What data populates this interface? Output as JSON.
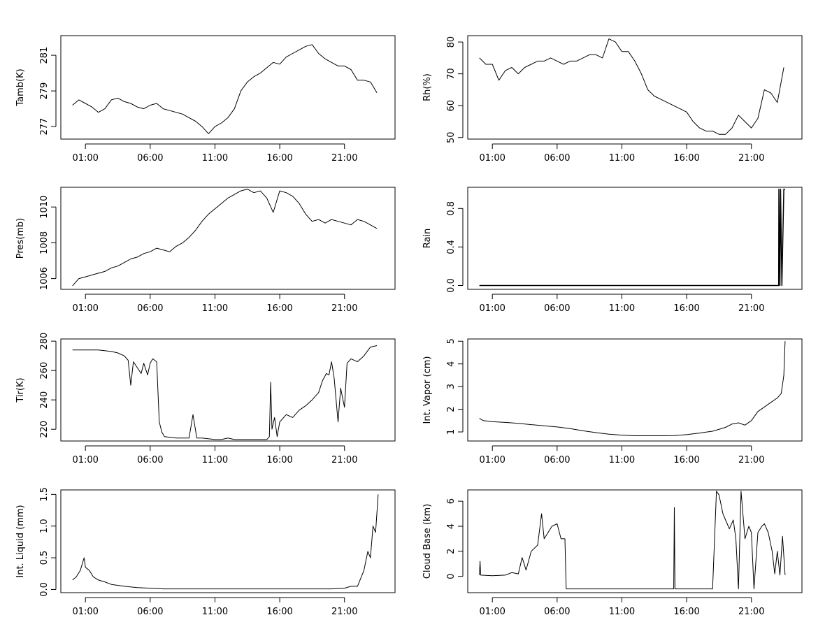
{
  "chart_data": [
    {
      "type": "line",
      "ylabel": "Tamb(K)",
      "xlabel": "",
      "x_ticks": [
        1,
        6,
        11,
        16,
        21
      ],
      "x_tick_labels": [
        "01:00",
        "06:00",
        "11:00",
        "16:00",
        "21:00"
      ],
      "xlim": [
        -0.9,
        24.9
      ],
      "y_ticks": [
        277,
        279,
        281
      ],
      "ylim": [
        276.3,
        282.1
      ],
      "series": [
        {
          "x": [
            0,
            0.5,
            1,
            1.5,
            2,
            2.5,
            3,
            3.5,
            4,
            4.5,
            5,
            5.5,
            6,
            6.5,
            7,
            7.5,
            8,
            8.5,
            9,
            9.5,
            10,
            10.5,
            11,
            11.5,
            12,
            12.5,
            13,
            13.5,
            14,
            14.5,
            15,
            15.5,
            16,
            16.5,
            17,
            17.5,
            18,
            18.5,
            19,
            19.5,
            20,
            20.5,
            21,
            21.5,
            22,
            22.5,
            23,
            23.5
          ],
          "y": [
            278.2,
            278.5,
            278.3,
            278.1,
            277.8,
            278.0,
            278.5,
            278.6,
            278.4,
            278.3,
            278.1,
            278.0,
            278.2,
            278.3,
            278.0,
            277.9,
            277.8,
            277.7,
            277.5,
            277.3,
            277.0,
            276.6,
            277.0,
            277.2,
            277.5,
            278.0,
            279.0,
            279.5,
            279.8,
            280.0,
            280.3,
            280.6,
            280.5,
            280.9,
            281.1,
            281.3,
            281.5,
            281.6,
            281.1,
            280.8,
            280.6,
            280.4,
            280.4,
            280.2,
            279.6,
            279.6,
            279.5,
            278.9
          ]
        }
      ]
    },
    {
      "type": "line",
      "ylabel": "Rh(%)",
      "xlabel": "",
      "x_ticks": [
        1,
        6,
        11,
        16,
        21
      ],
      "x_tick_labels": [
        "01:00",
        "06:00",
        "11:00",
        "16:00",
        "21:00"
      ],
      "xlim": [
        -0.9,
        24.9
      ],
      "y_ticks": [
        50,
        60,
        70,
        80
      ],
      "ylim": [
        49.5,
        82
      ],
      "series": [
        {
          "x": [
            0,
            0.5,
            1,
            1.5,
            2,
            2.5,
            3,
            3.5,
            4,
            4.5,
            5,
            5.5,
            6,
            6.5,
            7,
            7.5,
            8,
            8.5,
            9,
            9.5,
            10,
            10.5,
            11,
            11.5,
            12,
            12.5,
            13,
            13.5,
            14,
            14.5,
            15,
            15.5,
            16,
            16.5,
            17,
            17.5,
            18,
            18.5,
            19,
            19.5,
            20,
            20.5,
            21,
            21.5,
            22,
            22.5,
            23,
            23.5
          ],
          "y": [
            75,
            73,
            73,
            68,
            71,
            72,
            70,
            72,
            73,
            74,
            74,
            75,
            74,
            73,
            74,
            74,
            75,
            76,
            76,
            75,
            81,
            80,
            77,
            77,
            74,
            70,
            65,
            63,
            62,
            61,
            60,
            59,
            58,
            55,
            53,
            52,
            52,
            51,
            51,
            53,
            57,
            55,
            53,
            56,
            65,
            64,
            61,
            72
          ]
        }
      ]
    },
    {
      "type": "line",
      "ylabel": "Pres(mb)",
      "xlabel": "",
      "x_ticks": [
        1,
        6,
        11,
        16,
        21
      ],
      "x_tick_labels": [
        "01:00",
        "06:00",
        "11:00",
        "16:00",
        "21:00"
      ],
      "xlim": [
        -0.9,
        24.9
      ],
      "y_ticks": [
        1006,
        1008,
        1010
      ],
      "ylim": [
        1005.4,
        1011.1
      ],
      "series": [
        {
          "x": [
            0,
            0.5,
            1,
            1.5,
            2,
            2.5,
            3,
            3.5,
            4,
            4.5,
            5,
            5.5,
            6,
            6.5,
            7,
            7.5,
            8,
            8.5,
            9,
            9.5,
            10,
            10.5,
            11,
            11.5,
            12,
            12.5,
            13,
            13.5,
            14,
            14.5,
            15,
            15.5,
            16,
            16.5,
            17,
            17.5,
            18,
            18.5,
            19,
            19.5,
            20,
            20.5,
            21,
            21.5,
            22,
            22.5,
            23,
            23.5
          ],
          "y": [
            1005.6,
            1006.0,
            1006.1,
            1006.2,
            1006.3,
            1006.4,
            1006.6,
            1006.7,
            1006.9,
            1007.1,
            1007.2,
            1007.4,
            1007.5,
            1007.7,
            1007.6,
            1007.5,
            1007.8,
            1008.0,
            1008.3,
            1008.7,
            1009.2,
            1009.6,
            1009.9,
            1010.2,
            1010.5,
            1010.7,
            1010.9,
            1011.0,
            1010.8,
            1010.9,
            1010.5,
            1009.7,
            1010.9,
            1010.8,
            1010.6,
            1010.2,
            1009.6,
            1009.2,
            1009.3,
            1009.1,
            1009.3,
            1009.2,
            1009.1,
            1009.0,
            1009.3,
            1009.2,
            1009.0,
            1008.8
          ]
        }
      ]
    },
    {
      "type": "line",
      "ylabel": "Rain",
      "xlabel": "",
      "x_ticks": [
        1,
        6,
        11,
        16,
        21
      ],
      "x_tick_labels": [
        "01:00",
        "06:00",
        "11:00",
        "16:00",
        "21:00"
      ],
      "xlim": [
        -0.9,
        24.9
      ],
      "y_ticks": [
        0.0,
        0.4,
        0.8
      ],
      "y_tick_labels": [
        "0.0",
        "0.4",
        "0.8"
      ],
      "ylim": [
        -0.04,
        1.02
      ],
      "series": [
        {
          "x": [
            0,
            23.1,
            23.12,
            23.2,
            23.25,
            23.35,
            23.5,
            23.6
          ],
          "y": [
            0,
            0,
            1,
            0,
            1,
            0,
            1,
            1
          ]
        }
      ]
    },
    {
      "type": "line",
      "ylabel": "Tir(K)",
      "xlabel": "",
      "x_ticks": [
        1,
        6,
        11,
        16,
        21
      ],
      "x_tick_labels": [
        "01:00",
        "06:00",
        "11:00",
        "16:00",
        "21:00"
      ],
      "xlim": [
        -0.9,
        24.9
      ],
      "y_ticks": [
        220,
        240,
        260,
        280
      ],
      "ylim": [
        212,
        281.5
      ],
      "series": [
        {
          "x": [
            0,
            1,
            2,
            3,
            3.5,
            4,
            4.3,
            4.5,
            4.7,
            5,
            5.3,
            5.5,
            5.8,
            6,
            6.2,
            6.5,
            6.7,
            6.9,
            7.1,
            8,
            9,
            9.3,
            9.6,
            10,
            11,
            11.5,
            12,
            12.5,
            13,
            14,
            15,
            15.2,
            15.3,
            15.4,
            15.6,
            15.8,
            16,
            16.5,
            17,
            17.5,
            18,
            18.5,
            19,
            19.3,
            19.6,
            19.8,
            20,
            20.2,
            20.5,
            20.7,
            21,
            21.2,
            21.5,
            22,
            22.5,
            23,
            23.5
          ],
          "y": [
            274,
            274,
            274,
            273,
            272,
            270,
            267,
            250,
            266,
            262,
            258,
            265,
            257,
            265,
            268,
            266,
            225,
            218,
            215,
            214,
            214,
            230,
            214,
            214,
            213,
            213,
            214,
            213,
            213,
            213,
            213,
            215,
            252,
            220,
            228,
            215,
            225,
            230,
            228,
            233,
            236,
            240,
            245,
            253,
            258,
            257,
            266,
            255,
            225,
            248,
            235,
            265,
            268,
            266,
            270,
            276,
            277
          ]
        }
      ]
    },
    {
      "type": "line",
      "ylabel": "Int. Vapor (cm)",
      "xlabel": "",
      "x_ticks": [
        1,
        6,
        11,
        16,
        21
      ],
      "x_tick_labels": [
        "01:00",
        "06:00",
        "11:00",
        "16:00",
        "21:00"
      ],
      "xlim": [
        -0.9,
        24.9
      ],
      "y_ticks": [
        1,
        2,
        3,
        4,
        5
      ],
      "ylim": [
        0.6,
        5.1
      ],
      "series": [
        {
          "x": [
            0,
            0.3,
            1,
            2,
            3,
            4,
            5,
            6,
            7,
            8,
            9,
            10,
            11,
            12,
            13,
            14,
            15,
            16,
            17,
            18,
            19,
            19.5,
            20,
            20.5,
            21,
            21.5,
            22,
            22.5,
            23,
            23.3,
            23.5,
            23.6
          ],
          "y": [
            1.6,
            1.5,
            1.45,
            1.42,
            1.38,
            1.32,
            1.27,
            1.22,
            1.15,
            1.05,
            0.97,
            0.9,
            0.86,
            0.83,
            0.83,
            0.83,
            0.84,
            0.88,
            0.95,
            1.03,
            1.2,
            1.35,
            1.4,
            1.3,
            1.5,
            1.9,
            2.1,
            2.3,
            2.5,
            2.7,
            3.5,
            5.0
          ]
        }
      ]
    },
    {
      "type": "line",
      "ylabel": "Int. Liquid (mm)",
      "xlabel": "",
      "x_ticks": [
        1,
        6,
        11,
        16,
        21
      ],
      "x_tick_labels": [
        "01:00",
        "06:00",
        "11:00",
        "16:00",
        "21:00"
      ],
      "xlim": [
        -0.9,
        24.9
      ],
      "y_ticks": [
        0.0,
        0.5,
        1.0,
        1.5
      ],
      "y_tick_labels": [
        "0.0",
        "0.5",
        "1.0",
        "1.5"
      ],
      "ylim": [
        -0.05,
        1.57
      ],
      "series": [
        {
          "x": [
            0,
            0.3,
            0.6,
            0.9,
            1,
            1.3,
            1.6,
            2,
            2.5,
            3,
            4,
            5,
            6,
            7,
            8,
            10,
            12,
            14,
            16,
            18,
            20,
            21,
            21.5,
            22,
            22.5,
            22.8,
            23,
            23.2,
            23.4,
            23.6
          ],
          "y": [
            0.15,
            0.2,
            0.3,
            0.5,
            0.35,
            0.3,
            0.2,
            0.15,
            0.12,
            0.08,
            0.05,
            0.03,
            0.02,
            0.01,
            0.01,
            0.01,
            0.01,
            0.01,
            0.01,
            0.01,
            0.01,
            0.02,
            0.05,
            0.05,
            0.3,
            0.6,
            0.5,
            1.0,
            0.9,
            1.5
          ]
        }
      ]
    },
    {
      "type": "line",
      "ylabel": "Cloud Base (km)",
      "xlabel": "",
      "x_ticks": [
        1,
        6,
        11,
        16,
        21
      ],
      "x_tick_labels": [
        "01:00",
        "06:00",
        "11:00",
        "16:00",
        "21:00"
      ],
      "xlim": [
        -0.9,
        24.9
      ],
      "y_ticks": [
        0,
        2,
        4,
        6
      ],
      "ylim": [
        -1.3,
        6.9
      ],
      "series": [
        {
          "x": [
            0,
            0.05,
            0.1,
            1,
            2,
            2.5,
            3,
            3.3,
            3.6,
            4,
            4.5,
            4.8,
            5,
            5.3,
            5.6,
            6,
            6.3,
            6.6,
            6.7,
            6.75,
            10,
            15.0,
            15.05,
            15.1,
            15.2,
            15.25,
            18,
            18.3,
            18.5,
            18.8,
            19,
            19.3,
            19.6,
            19.8,
            20,
            20.2,
            20.5,
            20.8,
            21,
            21.2,
            21.5,
            21.8,
            22,
            22.3,
            22.6,
            22.8,
            23,
            23.2,
            23.4,
            23.6
          ],
          "y": [
            0.1,
            1.2,
            0.1,
            0.05,
            0.1,
            0.3,
            0.2,
            1.5,
            0.5,
            2.0,
            2.5,
            5.0,
            3.0,
            3.5,
            4.0,
            4.2,
            3.0,
            3.0,
            -1.0,
            -1.0,
            -1.0,
            -1.0,
            5.5,
            -1.0,
            -1.0,
            -1.0,
            -1.0,
            6.8,
            6.5,
            5.0,
            4.5,
            3.8,
            4.5,
            3.0,
            -1.0,
            6.8,
            3.0,
            4.0,
            3.5,
            -1.0,
            3.5,
            4.0,
            4.2,
            3.5,
            2.0,
            0.2,
            2.0,
            0.1,
            3.2,
            0.1
          ]
        }
      ]
    }
  ]
}
